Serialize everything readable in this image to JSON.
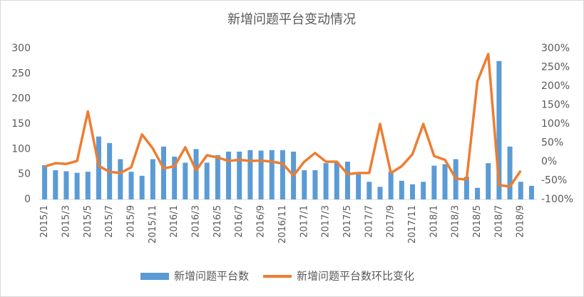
{
  "chart_data": {
    "type": "bar+line",
    "title": "新增问题平台变动情况",
    "categories": [
      "2015/1",
      null,
      "2015/3",
      null,
      "2015/5",
      null,
      "2015/7",
      null,
      "2015/9",
      null,
      "2015/11",
      null,
      "2016/1",
      null,
      "2016/3",
      null,
      "2016/5",
      null,
      "2016/7",
      null,
      "2016/9",
      null,
      "2016/11",
      null,
      "2017/1",
      null,
      "2017/3",
      null,
      "2017/5",
      null,
      "2017/7",
      null,
      "2017/9",
      null,
      "2017/11",
      null,
      "2018/1",
      null,
      "2018/3",
      null,
      "2018/5",
      null,
      "2018/7",
      null,
      "2018/9",
      null
    ],
    "series": [
      {
        "name": "新增问题平台数",
        "type": "bar",
        "color": "#5b9bd5",
        "values": [
          68,
          58,
          56,
          53,
          55,
          125,
          112,
          80,
          55,
          47,
          80,
          105,
          85,
          73,
          100,
          73,
          88,
          95,
          95,
          98,
          97,
          98,
          98,
          95,
          58,
          58,
          72,
          75,
          75,
          50,
          35,
          25,
          55,
          37,
          30,
          35,
          67,
          70,
          80,
          45,
          23,
          72,
          275,
          105,
          35,
          27
        ]
      },
      {
        "name": "新增问题平台数环比变化",
        "type": "line",
        "axis": "y2",
        "color": "#ed7d31",
        "values": [
          -13,
          -4,
          -6,
          2,
          133,
          -11,
          -27,
          -30,
          -15,
          72,
          35,
          -18,
          -12,
          38,
          -23,
          17,
          11,
          2,
          5,
          2,
          3,
          0,
          -5,
          -37,
          0,
          23,
          0,
          0,
          -33,
          -30,
          -30,
          100,
          -30,
          -12,
          20,
          100,
          15,
          5,
          -45,
          -47,
          213,
          285,
          -62,
          -66,
          -24,
          null
        ]
      }
    ],
    "ylim": [
      0,
      300
    ],
    "yticks": [
      0,
      50,
      100,
      150,
      200,
      250,
      300
    ],
    "y2lim": [
      -100,
      300
    ],
    "y2ticks": [
      {
        "value": -100,
        "label": "-100%"
      },
      {
        "value": -50,
        "label": "-50%"
      },
      {
        "value": 0,
        "label": "0%"
      },
      {
        "value": 50,
        "label": "50%"
      },
      {
        "value": 100,
        "label": "100%"
      },
      {
        "value": 150,
        "label": "150%"
      },
      {
        "value": 200,
        "label": "200%"
      },
      {
        "value": 250,
        "label": "250%"
      },
      {
        "value": 300,
        "label": "300%"
      }
    ],
    "legend": "bottom"
  }
}
